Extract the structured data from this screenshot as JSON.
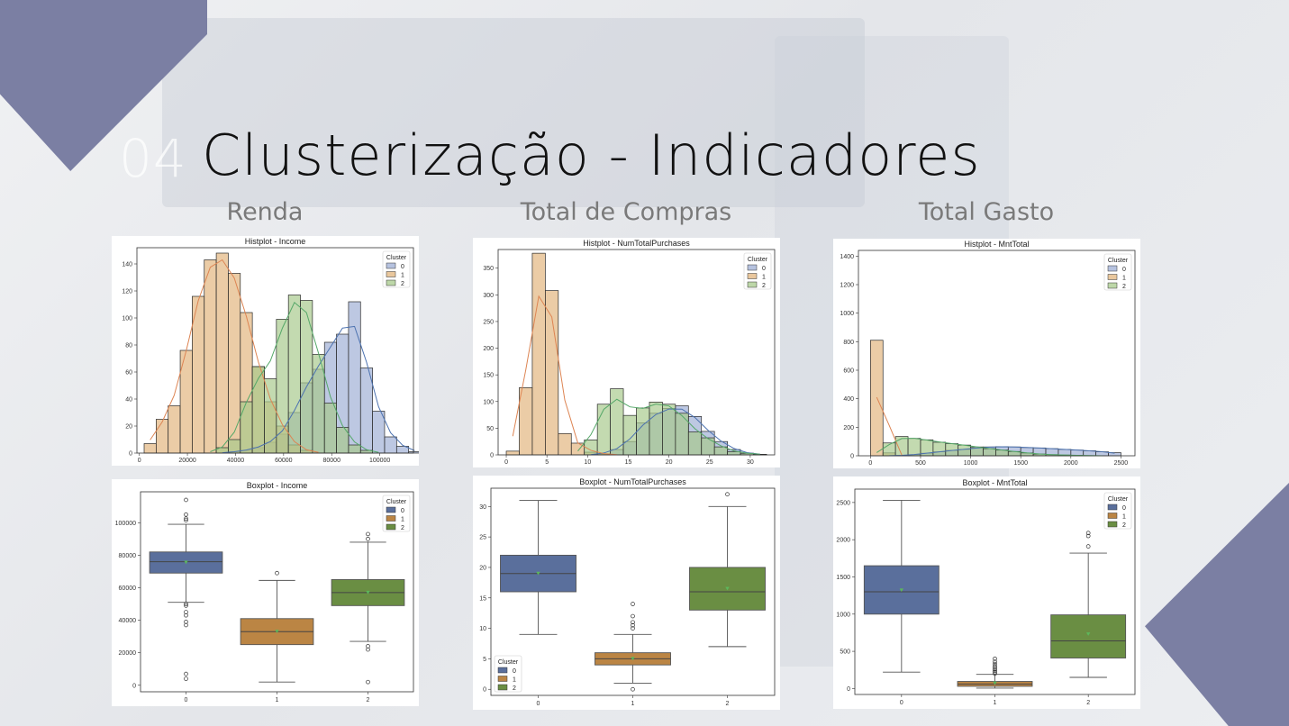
{
  "slide": {
    "number": "04",
    "title": "Clusterização - Indicadores",
    "columns": [
      "Renda",
      "Total de Compras",
      "Total Gasto"
    ]
  },
  "colors": {
    "accent": "#7b7fa3",
    "hist": [
      "#9daed4",
      "#e1b47c",
      "#a7c98b"
    ],
    "box": [
      "#5a6f9c",
      "#bb8544",
      "#6a8e43"
    ],
    "kde": [
      "#4c72b0",
      "#dd8452",
      "#55a868"
    ]
  },
  "chart_data": [
    {
      "type": "histogram",
      "title": "Histplot - Income",
      "legend_title": "Cluster",
      "legend": [
        "0",
        "1",
        "2"
      ],
      "legend_position": "top-right",
      "xlim": [
        -1000,
        114000
      ],
      "ylim": [
        0,
        152
      ],
      "xticks": [
        0,
        20000,
        40000,
        60000,
        80000,
        100000
      ],
      "yticks": [
        0,
        20,
        40,
        60,
        80,
        100,
        120,
        140
      ],
      "bin_width": 5000,
      "x_start": 2000,
      "series": [
        {
          "name": "0",
          "counts": [
            0,
            0,
            0,
            0,
            0,
            0,
            0,
            1,
            2,
            4,
            8,
            14,
            30,
            52,
            62,
            82,
            88,
            112,
            63,
            31,
            12,
            5,
            1
          ]
        },
        {
          "name": "1",
          "counts": [
            7,
            25,
            35,
            76,
            116,
            143,
            148,
            133,
            104,
            64,
            38,
            20,
            6,
            2,
            0,
            0,
            0,
            0,
            0,
            0,
            0,
            0,
            0
          ]
        },
        {
          "name": "2",
          "counts": [
            0,
            0,
            0,
            0,
            0,
            0,
            4,
            10,
            38,
            64,
            55,
            99,
            117,
            113,
            73,
            37,
            19,
            6,
            2,
            0,
            0,
            0,
            0
          ]
        }
      ]
    },
    {
      "type": "histogram",
      "title": "Histplot - NumTotalPurchases",
      "legend_title": "Cluster",
      "legend": [
        "0",
        "1",
        "2"
      ],
      "legend_position": "top-right",
      "xlim": [
        -1,
        33
      ],
      "ylim": [
        0,
        385
      ],
      "xticks": [
        0,
        5,
        10,
        15,
        20,
        25,
        30
      ],
      "yticks": [
        0,
        50,
        100,
        150,
        200,
        250,
        300,
        350
      ],
      "bin_width": 1.6,
      "x_start": 0,
      "series": [
        {
          "name": "0",
          "counts": [
            0,
            0,
            0,
            0,
            0,
            0,
            0,
            2,
            10,
            25,
            60,
            78,
            87,
            92,
            72,
            44,
            25,
            10,
            3,
            1
          ]
        },
        {
          "name": "1",
          "counts": [
            7,
            126,
            378,
            308,
            40,
            22,
            5,
            2,
            0,
            0,
            0,
            0,
            0,
            0,
            0,
            0,
            0,
            0,
            0,
            0
          ]
        },
        {
          "name": "2",
          "counts": [
            0,
            0,
            0,
            0,
            0,
            0,
            28,
            95,
            124,
            74,
            88,
            99,
            95,
            78,
            43,
            32,
            15,
            6,
            3,
            1
          ]
        }
      ]
    },
    {
      "type": "histogram",
      "title": "Histplot - MntTotal",
      "legend_title": "Cluster",
      "legend": [
        "0",
        "1",
        "2"
      ],
      "legend_position": "top-right",
      "xlim": [
        -120,
        2640
      ],
      "ylim": [
        0,
        1440
      ],
      "xticks": [
        0,
        500,
        1000,
        1500,
        2000,
        2500
      ],
      "yticks": [
        0,
        200,
        400,
        600,
        800,
        1000,
        1200,
        1400
      ],
      "bin_width": 125,
      "x_start": 0,
      "series": [
        {
          "name": "0",
          "counts": [
            0,
            0,
            2,
            8,
            18,
            28,
            38,
            45,
            55,
            62,
            64,
            62,
            58,
            55,
            50,
            45,
            40,
            35,
            28,
            22
          ]
        },
        {
          "name": "1",
          "counts": [
            810,
            20,
            0,
            0,
            0,
            0,
            0,
            0,
            0,
            0,
            0,
            0,
            0,
            0,
            0,
            0,
            0,
            0,
            0,
            0
          ]
        },
        {
          "name": "2",
          "counts": [
            0,
            90,
            135,
            122,
            112,
            95,
            85,
            75,
            62,
            50,
            40,
            30,
            20,
            12,
            8,
            5,
            3,
            1,
            0,
            0
          ]
        }
      ]
    },
    {
      "type": "boxplot",
      "title": "Boxplot - Income",
      "legend_title": "Cluster",
      "legend": [
        "0",
        "1",
        "2"
      ],
      "legend_position": "top-right",
      "categories": [
        "0",
        "1",
        "2"
      ],
      "ylim": [
        -4000,
        119000
      ],
      "yticks": [
        0,
        20000,
        40000,
        60000,
        80000,
        100000
      ],
      "boxes": [
        {
          "q1": 69000,
          "median": 76000,
          "q3": 82000,
          "mean": 75500,
          "whislo": 51000,
          "whishi": 99000,
          "fliers": [
            114000,
            105000,
            102500,
            101500,
            50000,
            49000,
            45000,
            43000,
            39000,
            37000,
            7000,
            4000
          ]
        },
        {
          "q1": 25000,
          "median": 33000,
          "q3": 41000,
          "mean": 33000,
          "whislo": 2000,
          "whishi": 64500,
          "fliers": [
            69000
          ]
        },
        {
          "q1": 49000,
          "median": 57000,
          "q3": 65000,
          "mean": 57000,
          "whislo": 27000,
          "whishi": 88000,
          "fliers": [
            93000,
            90000,
            24000,
            22000,
            2000
          ]
        }
      ]
    },
    {
      "type": "boxplot",
      "title": "Boxplot - NumTotalPurchases",
      "legend_title": "Cluster",
      "legend": [
        "0",
        "1",
        "2"
      ],
      "legend_position": "bottom-left",
      "categories": [
        "0",
        "1",
        "2"
      ],
      "ylim": [
        -1,
        33
      ],
      "yticks": [
        0,
        5,
        10,
        15,
        20,
        25,
        30
      ],
      "boxes": [
        {
          "q1": 16,
          "median": 19,
          "q3": 22,
          "mean": 19,
          "whislo": 9,
          "whishi": 31,
          "fliers": []
        },
        {
          "q1": 4,
          "median": 5,
          "q3": 6,
          "mean": 5,
          "whislo": 1,
          "whishi": 9,
          "fliers": [
            14,
            12,
            11,
            10.5,
            10,
            0
          ]
        },
        {
          "q1": 13,
          "median": 16,
          "q3": 20,
          "mean": 16.5,
          "whislo": 7,
          "whishi": 30,
          "fliers": [
            32
          ]
        }
      ]
    },
    {
      "type": "boxplot",
      "title": "Boxplot - MntTotal",
      "legend_title": "Cluster",
      "legend": [
        "0",
        "1",
        "2"
      ],
      "legend_position": "top-right",
      "categories": [
        "0",
        "1",
        "2"
      ],
      "ylim": [
        -80,
        2680
      ],
      "yticks": [
        0,
        500,
        1000,
        1500,
        2000,
        2500
      ],
      "boxes": [
        {
          "q1": 1000,
          "median": 1300,
          "q3": 1650,
          "mean": 1320,
          "whislo": 220,
          "whishi": 2530,
          "fliers": []
        },
        {
          "q1": 30,
          "median": 60,
          "q3": 95,
          "mean": 70,
          "whislo": 5,
          "whishi": 190,
          "fliers": [
            200,
            220,
            240,
            260,
            280,
            300,
            330,
            360,
            400
          ]
        },
        {
          "q1": 410,
          "median": 640,
          "q3": 990,
          "mean": 730,
          "whislo": 150,
          "whishi": 1820,
          "fliers": [
            1910,
            2050,
            2090
          ]
        }
      ]
    }
  ]
}
